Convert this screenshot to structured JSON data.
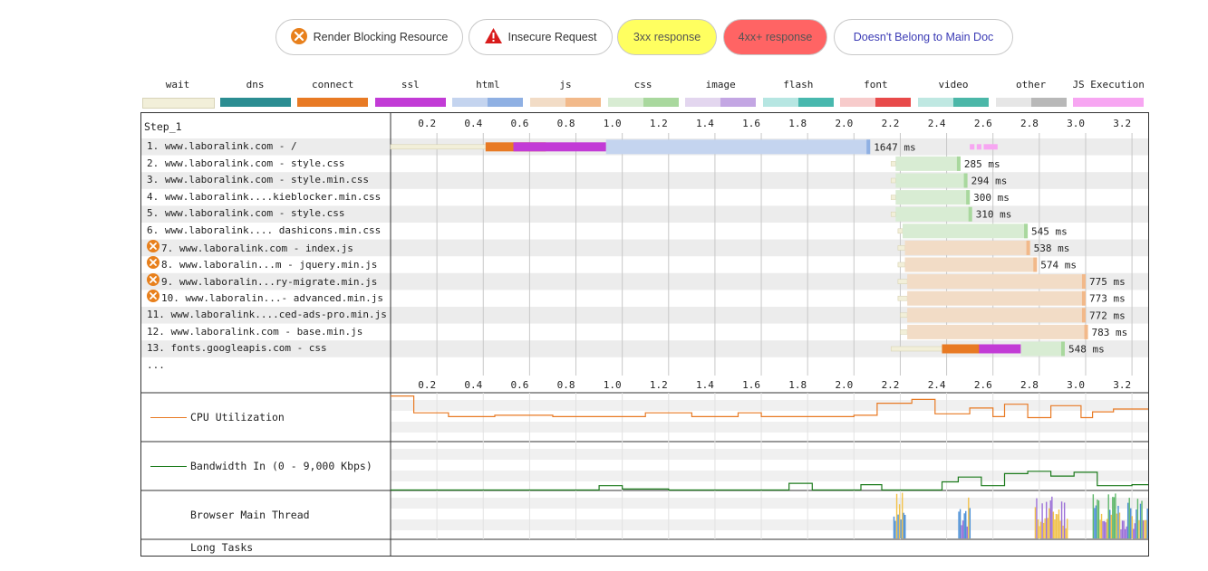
{
  "legend_buttons": [
    {
      "label": "Render Blocking Resource",
      "icon": "render-blocking-icon",
      "bg": "#ffffff",
      "color": "#333333"
    },
    {
      "label": "Insecure Request",
      "icon": "warning-icon",
      "bg": "#ffffff",
      "color": "#333333"
    },
    {
      "label": "3xx response",
      "icon": "",
      "bg": "#ffff60",
      "color": "#555555"
    },
    {
      "label": "4xx+ response",
      "icon": "",
      "bg": "#ff6464",
      "color": "#555555"
    },
    {
      "label": "Doesn't Belong to Main Doc",
      "icon": "",
      "bg": "#ffffff",
      "color": "#3b3bb5"
    }
  ],
  "request_types": [
    {
      "name": "wait",
      "color": "#f2efd9",
      "color2": "#f2efd9"
    },
    {
      "name": "dns",
      "color": "#2b8d92",
      "color2": "#2b8d92"
    },
    {
      "name": "connect",
      "color": "#e87a24",
      "color2": "#e87a24"
    },
    {
      "name": "ssl",
      "color": "#c23bd6",
      "color2": "#c23bd6"
    },
    {
      "name": "html",
      "color": "#c4d4ef",
      "color2": "#8fb0e3"
    },
    {
      "name": "js",
      "color": "#f2dcc6",
      "color2": "#f2b98a"
    },
    {
      "name": "css",
      "color": "#d8ecd3",
      "color2": "#a9d89e"
    },
    {
      "name": "image",
      "color": "#e3d6ef",
      "color2": "#c3a6e3"
    },
    {
      "name": "flash",
      "color": "#b6e6e2",
      "color2": "#48b8ae"
    },
    {
      "name": "font",
      "color": "#f7cbcb",
      "color2": "#e84a4a"
    },
    {
      "name": "video",
      "color": "#bfe8e2",
      "color2": "#4bb7a8"
    },
    {
      "name": "other",
      "color": "#e6e6e6",
      "color2": "#b8b8b8"
    },
    {
      "name": "JS Execution",
      "color": "#f7a6f2",
      "color2": "#f7a6f2"
    }
  ],
  "step_label": "Step_1",
  "ticks": [
    "0.2",
    "0.4",
    "0.6",
    "0.8",
    "1.0",
    "1.2",
    "1.4",
    "1.6",
    "1.8",
    "2.0",
    "2.2",
    "2.4",
    "2.6",
    "2.8",
    "3.0",
    "3.2"
  ],
  "requests": [
    {
      "label": "1. www.laboralink.com - /",
      "time": "1647 ms",
      "blocking": false,
      "type": "html",
      "start": 0.0,
      "ttfb": 0.93,
      "end": 2.07,
      "dns": [
        0.41,
        0.41
      ],
      "conn": [
        0.41,
        0.67
      ],
      "ssl": [
        0.53,
        0.93
      ]
    },
    {
      "label": "2. www.laboralink.com - style.css",
      "time": "285 ms",
      "blocking": false,
      "type": "css",
      "start": 2.16,
      "ttfb": 2.18,
      "end": 2.46
    },
    {
      "label": "3. www.laboralink.com - style.min.css",
      "time": "294 ms",
      "blocking": false,
      "type": "css",
      "start": 2.16,
      "ttfb": 2.18,
      "end": 2.49
    },
    {
      "label": "4. www.laboralink....kieblocker.min.css",
      "time": "300 ms",
      "blocking": false,
      "type": "css",
      "start": 2.16,
      "ttfb": 2.18,
      "end": 2.5
    },
    {
      "label": "5. www.laboralink.com - style.css",
      "time": "310 ms",
      "blocking": false,
      "type": "css",
      "start": 2.16,
      "ttfb": 2.18,
      "end": 2.51
    },
    {
      "label": "6. www.laboralink.... dashicons.min.css",
      "time": "545 ms",
      "blocking": false,
      "type": "css",
      "start": 2.19,
      "ttfb": 2.21,
      "end": 2.75
    },
    {
      "label": "7. www.laboralink.com - index.js",
      "time": "538 ms",
      "blocking": true,
      "type": "js",
      "start": 2.19,
      "ttfb": 2.22,
      "end": 2.76
    },
    {
      "label": "8. www.laboralin...m - jquery.min.js",
      "time": "574 ms",
      "blocking": true,
      "type": "js",
      "start": 2.19,
      "ttfb": 2.22,
      "end": 2.79
    },
    {
      "label": "9. www.laboralin...ry-migrate.min.js",
      "time": "775 ms",
      "blocking": true,
      "type": "js",
      "start": 2.19,
      "ttfb": 2.23,
      "end": 3.0
    },
    {
      "label": "10. www.laboralin...- advanced.min.js",
      "time": "773 ms",
      "blocking": true,
      "type": "js",
      "start": 2.19,
      "ttfb": 2.23,
      "end": 3.0
    },
    {
      "label": "11. www.laboralink....ced-ads-pro.min.js",
      "time": "772 ms",
      "blocking": false,
      "type": "js",
      "start": 2.2,
      "ttfb": 2.23,
      "end": 3.0
    },
    {
      "label": "12. www.laboralink.com - base.min.js",
      "time": "783 ms",
      "blocking": false,
      "type": "js",
      "start": 2.2,
      "ttfb": 2.23,
      "end": 3.01
    },
    {
      "label": "13. fonts.googleapis.com - css",
      "time": "548 ms",
      "blocking": false,
      "type": "css",
      "start": 2.16,
      "ttfb": 2.72,
      "end": 2.91,
      "conn": [
        2.38,
        2.56
      ],
      "ssl": [
        2.54,
        2.74
      ]
    }
  ],
  "more_label": "...",
  "panels": {
    "cpu": {
      "label": "CPU Utilization",
      "color": "#e87a24"
    },
    "bandwidth": {
      "label": "Bandwidth In (0 - 9,000 Kbps)",
      "color": "#1b7a1b"
    },
    "main_thread": {
      "label": "Browser Main Thread"
    },
    "long_tasks": {
      "label": "Long Tasks"
    }
  },
  "cpu_series": [
    [
      0,
      0.95
    ],
    [
      0.1,
      0.95
    ],
    [
      0.1,
      0.6
    ],
    [
      0.25,
      0.6
    ],
    [
      0.25,
      0.52
    ],
    [
      0.45,
      0.52
    ],
    [
      0.45,
      0.55
    ],
    [
      0.7,
      0.55
    ],
    [
      0.7,
      0.52
    ],
    [
      1.1,
      0.52
    ],
    [
      1.1,
      0.6
    ],
    [
      1.3,
      0.6
    ],
    [
      1.3,
      0.52
    ],
    [
      1.5,
      0.52
    ],
    [
      1.5,
      0.6
    ],
    [
      1.6,
      0.6
    ],
    [
      1.6,
      0.52
    ],
    [
      2.0,
      0.52
    ],
    [
      2.0,
      0.55
    ],
    [
      2.1,
      0.55
    ],
    [
      2.1,
      0.8
    ],
    [
      2.25,
      0.8
    ],
    [
      2.25,
      0.88
    ],
    [
      2.35,
      0.88
    ],
    [
      2.35,
      0.58
    ],
    [
      2.5,
      0.58
    ],
    [
      2.5,
      0.7
    ],
    [
      2.6,
      0.7
    ],
    [
      2.6,
      0.52
    ],
    [
      2.65,
      0.52
    ],
    [
      2.65,
      0.78
    ],
    [
      2.75,
      0.78
    ],
    [
      2.75,
      0.5
    ],
    [
      2.85,
      0.5
    ],
    [
      2.85,
      0.75
    ],
    [
      2.98,
      0.75
    ],
    [
      2.98,
      0.5
    ],
    [
      3.03,
      0.5
    ],
    [
      3.03,
      0.62
    ],
    [
      3.12,
      0.62
    ],
    [
      3.12,
      0.68
    ],
    [
      3.27,
      0.68
    ]
  ],
  "bandwidth_series": [
    [
      0,
      0.01
    ],
    [
      0.9,
      0.01
    ],
    [
      0.9,
      0.1
    ],
    [
      1.0,
      0.1
    ],
    [
      1.0,
      0.03
    ],
    [
      1.2,
      0.03
    ],
    [
      1.2,
      0.01
    ],
    [
      1.72,
      0.01
    ],
    [
      1.72,
      0.15
    ],
    [
      1.82,
      0.15
    ],
    [
      1.82,
      0.01
    ],
    [
      2.03,
      0.01
    ],
    [
      2.03,
      0.12
    ],
    [
      2.12,
      0.12
    ],
    [
      2.12,
      0.01
    ],
    [
      2.38,
      0.01
    ],
    [
      2.38,
      0.18
    ],
    [
      2.45,
      0.18
    ],
    [
      2.45,
      0.28
    ],
    [
      2.55,
      0.28
    ],
    [
      2.55,
      0.1
    ],
    [
      2.65,
      0.1
    ],
    [
      2.65,
      0.35
    ],
    [
      2.75,
      0.35
    ],
    [
      2.75,
      0.4
    ],
    [
      2.85,
      0.4
    ],
    [
      2.85,
      0.3
    ],
    [
      2.95,
      0.3
    ],
    [
      2.95,
      0.38
    ],
    [
      3.05,
      0.38
    ],
    [
      3.05,
      0.1
    ],
    [
      3.2,
      0.1
    ],
    [
      3.2,
      0.12
    ],
    [
      3.27,
      0.12
    ]
  ]
}
